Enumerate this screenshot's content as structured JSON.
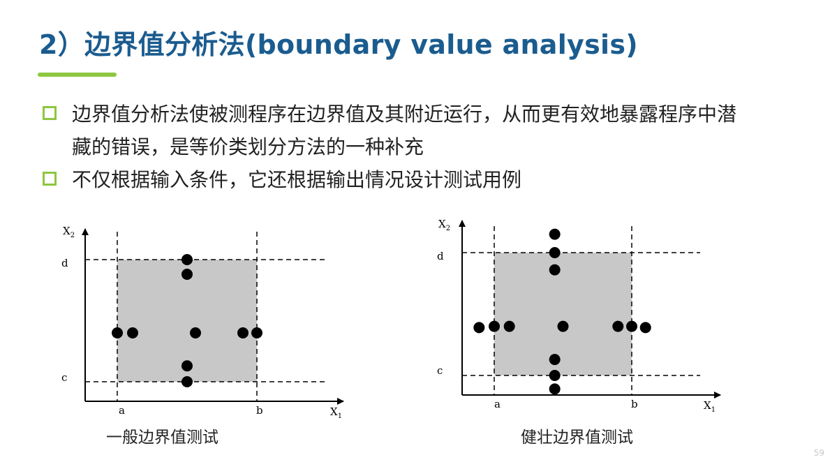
{
  "title": "2）边界值分析法(boundary value analysis)",
  "bullets": [
    {
      "lines": [
        "边界值分析法使被测程序在边界值及其附近运行，从而更有效地暴露程序中潜",
        "藏的错误，是等价类划分方法的一种补充"
      ]
    },
    {
      "lines": [
        "不仅根据输入条件，它还根据输出情况设计测试用例"
      ]
    }
  ],
  "diagrams": [
    {
      "caption": "一般边界值测试",
      "axis_labels": {
        "x_main": "X",
        "x_sub": "1",
        "y_main": "X",
        "y_sub": "2"
      },
      "tick_labels": {
        "a": "a",
        "b": "b",
        "c": "c",
        "d": "d"
      },
      "domain": {
        "a": 0,
        "b": 10,
        "c": 0,
        "d": 10
      },
      "test_points": [
        {
          "x": 5,
          "y": 10
        },
        {
          "x": 5,
          "y": 8.8
        },
        {
          "x": 0,
          "y": 4
        },
        {
          "x": 1.1,
          "y": 4
        },
        {
          "x": 5.6,
          "y": 4
        },
        {
          "x": 9,
          "y": 4
        },
        {
          "x": 10,
          "y": 4
        },
        {
          "x": 5,
          "y": 1.3
        },
        {
          "x": 5,
          "y": 0
        }
      ]
    },
    {
      "caption": "健壮边界值测试",
      "axis_labels": {
        "x_main": "X",
        "x_sub": "1",
        "y_main": "X",
        "y_sub": "2"
      },
      "tick_labels": {
        "a": "a",
        "b": "b",
        "c": "c",
        "d": "d"
      },
      "domain": {
        "a": 0,
        "b": 10,
        "c": 0,
        "d": 10
      },
      "test_points": [
        {
          "x": 4.4,
          "y": 11.5
        },
        {
          "x": 4.4,
          "y": 10
        },
        {
          "x": 4.4,
          "y": 8.6
        },
        {
          "x": -1.1,
          "y": 3.9
        },
        {
          "x": 0,
          "y": 4
        },
        {
          "x": 1.1,
          "y": 4
        },
        {
          "x": 5,
          "y": 4
        },
        {
          "x": 9,
          "y": 4
        },
        {
          "x": 10,
          "y": 4
        },
        {
          "x": 11,
          "y": 3.9
        },
        {
          "x": 4.4,
          "y": 1.3
        },
        {
          "x": 4.4,
          "y": 0
        },
        {
          "x": 4.4,
          "y": -1.1
        }
      ]
    }
  ],
  "page_number": "59",
  "colors": {
    "title": "#1b5c8f",
    "accent": "#8dc63f",
    "domain_fill": "#c8c8c8",
    "text": "#222222"
  }
}
